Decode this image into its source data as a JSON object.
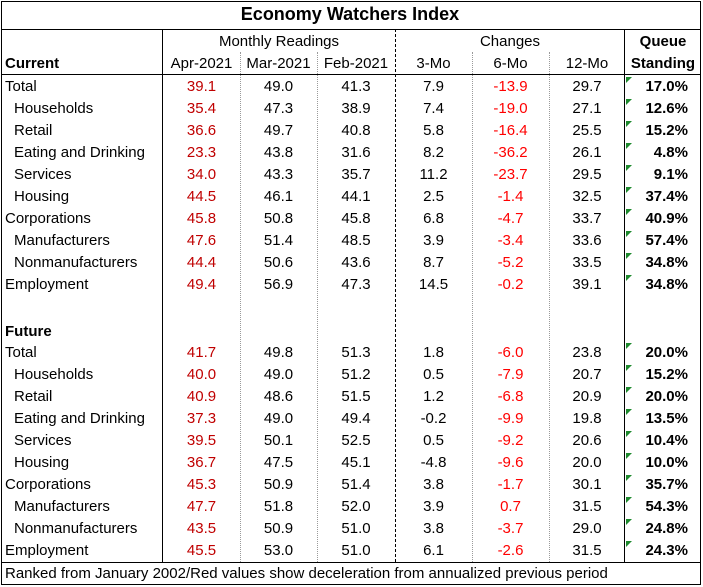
{
  "title": "Economy Watchers Index",
  "headers": {
    "monthly": "Monthly Readings",
    "changes": "Changes",
    "queue1": "Queue",
    "queue2": "Standing",
    "current": "Current",
    "future": "Future",
    "cols": [
      "Apr-2021",
      "Mar-2021",
      "Feb-2021",
      "3-Mo",
      "6-Mo",
      "12-Mo"
    ]
  },
  "current_rows": [
    {
      "label": "Total",
      "apr": "39.1",
      "mar": "49.0",
      "feb": "41.3",
      "m3": "7.9",
      "m6": "-13.9",
      "m12": "29.7",
      "queue": "17.0%"
    },
    {
      "label": "Households",
      "apr": "35.4",
      "mar": "47.3",
      "feb": "38.9",
      "m3": "7.4",
      "m6": "-19.0",
      "m12": "27.1",
      "queue": "12.6%"
    },
    {
      "label": "Retail",
      "apr": "36.6",
      "mar": "49.7",
      "feb": "40.8",
      "m3": "5.8",
      "m6": "-16.4",
      "m12": "25.5",
      "queue": "15.2%"
    },
    {
      "label": "Eating and Drinking",
      "apr": "23.3",
      "mar": "43.8",
      "feb": "31.6",
      "m3": "8.2",
      "m6": "-36.2",
      "m12": "26.1",
      "queue": "4.8%"
    },
    {
      "label": "Services",
      "apr": "34.0",
      "mar": "43.3",
      "feb": "35.7",
      "m3": "11.2",
      "m6": "-23.7",
      "m12": "29.5",
      "queue": "9.1%"
    },
    {
      "label": "Housing",
      "apr": "44.5",
      "mar": "46.1",
      "feb": "44.1",
      "m3": "2.5",
      "m6": "-1.4",
      "m12": "32.5",
      "queue": "37.4%"
    },
    {
      "label": "Corporations",
      "apr": "45.8",
      "mar": "50.8",
      "feb": "45.8",
      "m3": "6.8",
      "m6": "-4.7",
      "m12": "33.7",
      "queue": "40.9%"
    },
    {
      "label": "Manufacturers",
      "apr": "47.6",
      "mar": "51.4",
      "feb": "48.5",
      "m3": "3.9",
      "m6": "-3.4",
      "m12": "33.6",
      "queue": "57.4%"
    },
    {
      "label": "Nonmanufacturers",
      "apr": "44.4",
      "mar": "50.6",
      "feb": "43.6",
      "m3": "8.7",
      "m6": "-5.2",
      "m12": "33.5",
      "queue": "34.8%"
    },
    {
      "label": "Employment",
      "apr": "49.4",
      "mar": "56.9",
      "feb": "47.3",
      "m3": "14.5",
      "m6": "-0.2",
      "m12": "39.1",
      "queue": "34.8%"
    }
  ],
  "future_rows": [
    {
      "label": "Total",
      "apr": "41.7",
      "mar": "49.8",
      "feb": "51.3",
      "m3": "1.8",
      "m6": "-6.0",
      "m12": "23.8",
      "queue": "20.0%"
    },
    {
      "label": "Households",
      "apr": "40.0",
      "mar": "49.0",
      "feb": "51.2",
      "m3": "0.5",
      "m6": "-7.9",
      "m12": "20.7",
      "queue": "15.2%"
    },
    {
      "label": "Retail",
      "apr": "40.9",
      "mar": "48.6",
      "feb": "51.5",
      "m3": "1.2",
      "m6": "-6.8",
      "m12": "20.9",
      "queue": "20.0%"
    },
    {
      "label": "Eating and Drinking",
      "apr": "37.3",
      "mar": "49.0",
      "feb": "49.4",
      "m3": "-0.2",
      "m6": "-9.9",
      "m12": "19.8",
      "queue": "13.5%"
    },
    {
      "label": "Services",
      "apr": "39.5",
      "mar": "50.1",
      "feb": "52.5",
      "m3": "0.5",
      "m6": "-9.2",
      "m12": "20.6",
      "queue": "10.4%"
    },
    {
      "label": "Housing",
      "apr": "36.7",
      "mar": "47.5",
      "feb": "45.1",
      "m3": "-4.8",
      "m6": "-9.6",
      "m12": "20.0",
      "queue": "10.0%"
    },
    {
      "label": "Corporations",
      "apr": "45.3",
      "mar": "50.9",
      "feb": "51.4",
      "m3": "3.8",
      "m6": "-1.7",
      "m12": "30.1",
      "queue": "35.7%"
    },
    {
      "label": "Manufacturers",
      "apr": "47.7",
      "mar": "51.8",
      "feb": "52.0",
      "m3": "3.9",
      "m6": "0.7",
      "m12": "31.5",
      "queue": "54.3%"
    },
    {
      "label": "Nonmanufacturers",
      "apr": "43.5",
      "mar": "50.9",
      "feb": "51.0",
      "m3": "3.8",
      "m6": "-3.7",
      "m12": "29.0",
      "queue": "24.8%"
    },
    {
      "label": "Employment",
      "apr": "45.5",
      "mar": "53.0",
      "feb": "51.0",
      "m3": "6.1",
      "m6": "-2.6",
      "m12": "31.5",
      "queue": "24.3%"
    }
  ],
  "colors": {
    "apr_text": "#c00000",
    "negative_change": "#ff0000",
    "corner_marker": "#1e8a2e"
  },
  "footer": "Ranked from January 2002/Red values show deceleration from annualized previous period"
}
